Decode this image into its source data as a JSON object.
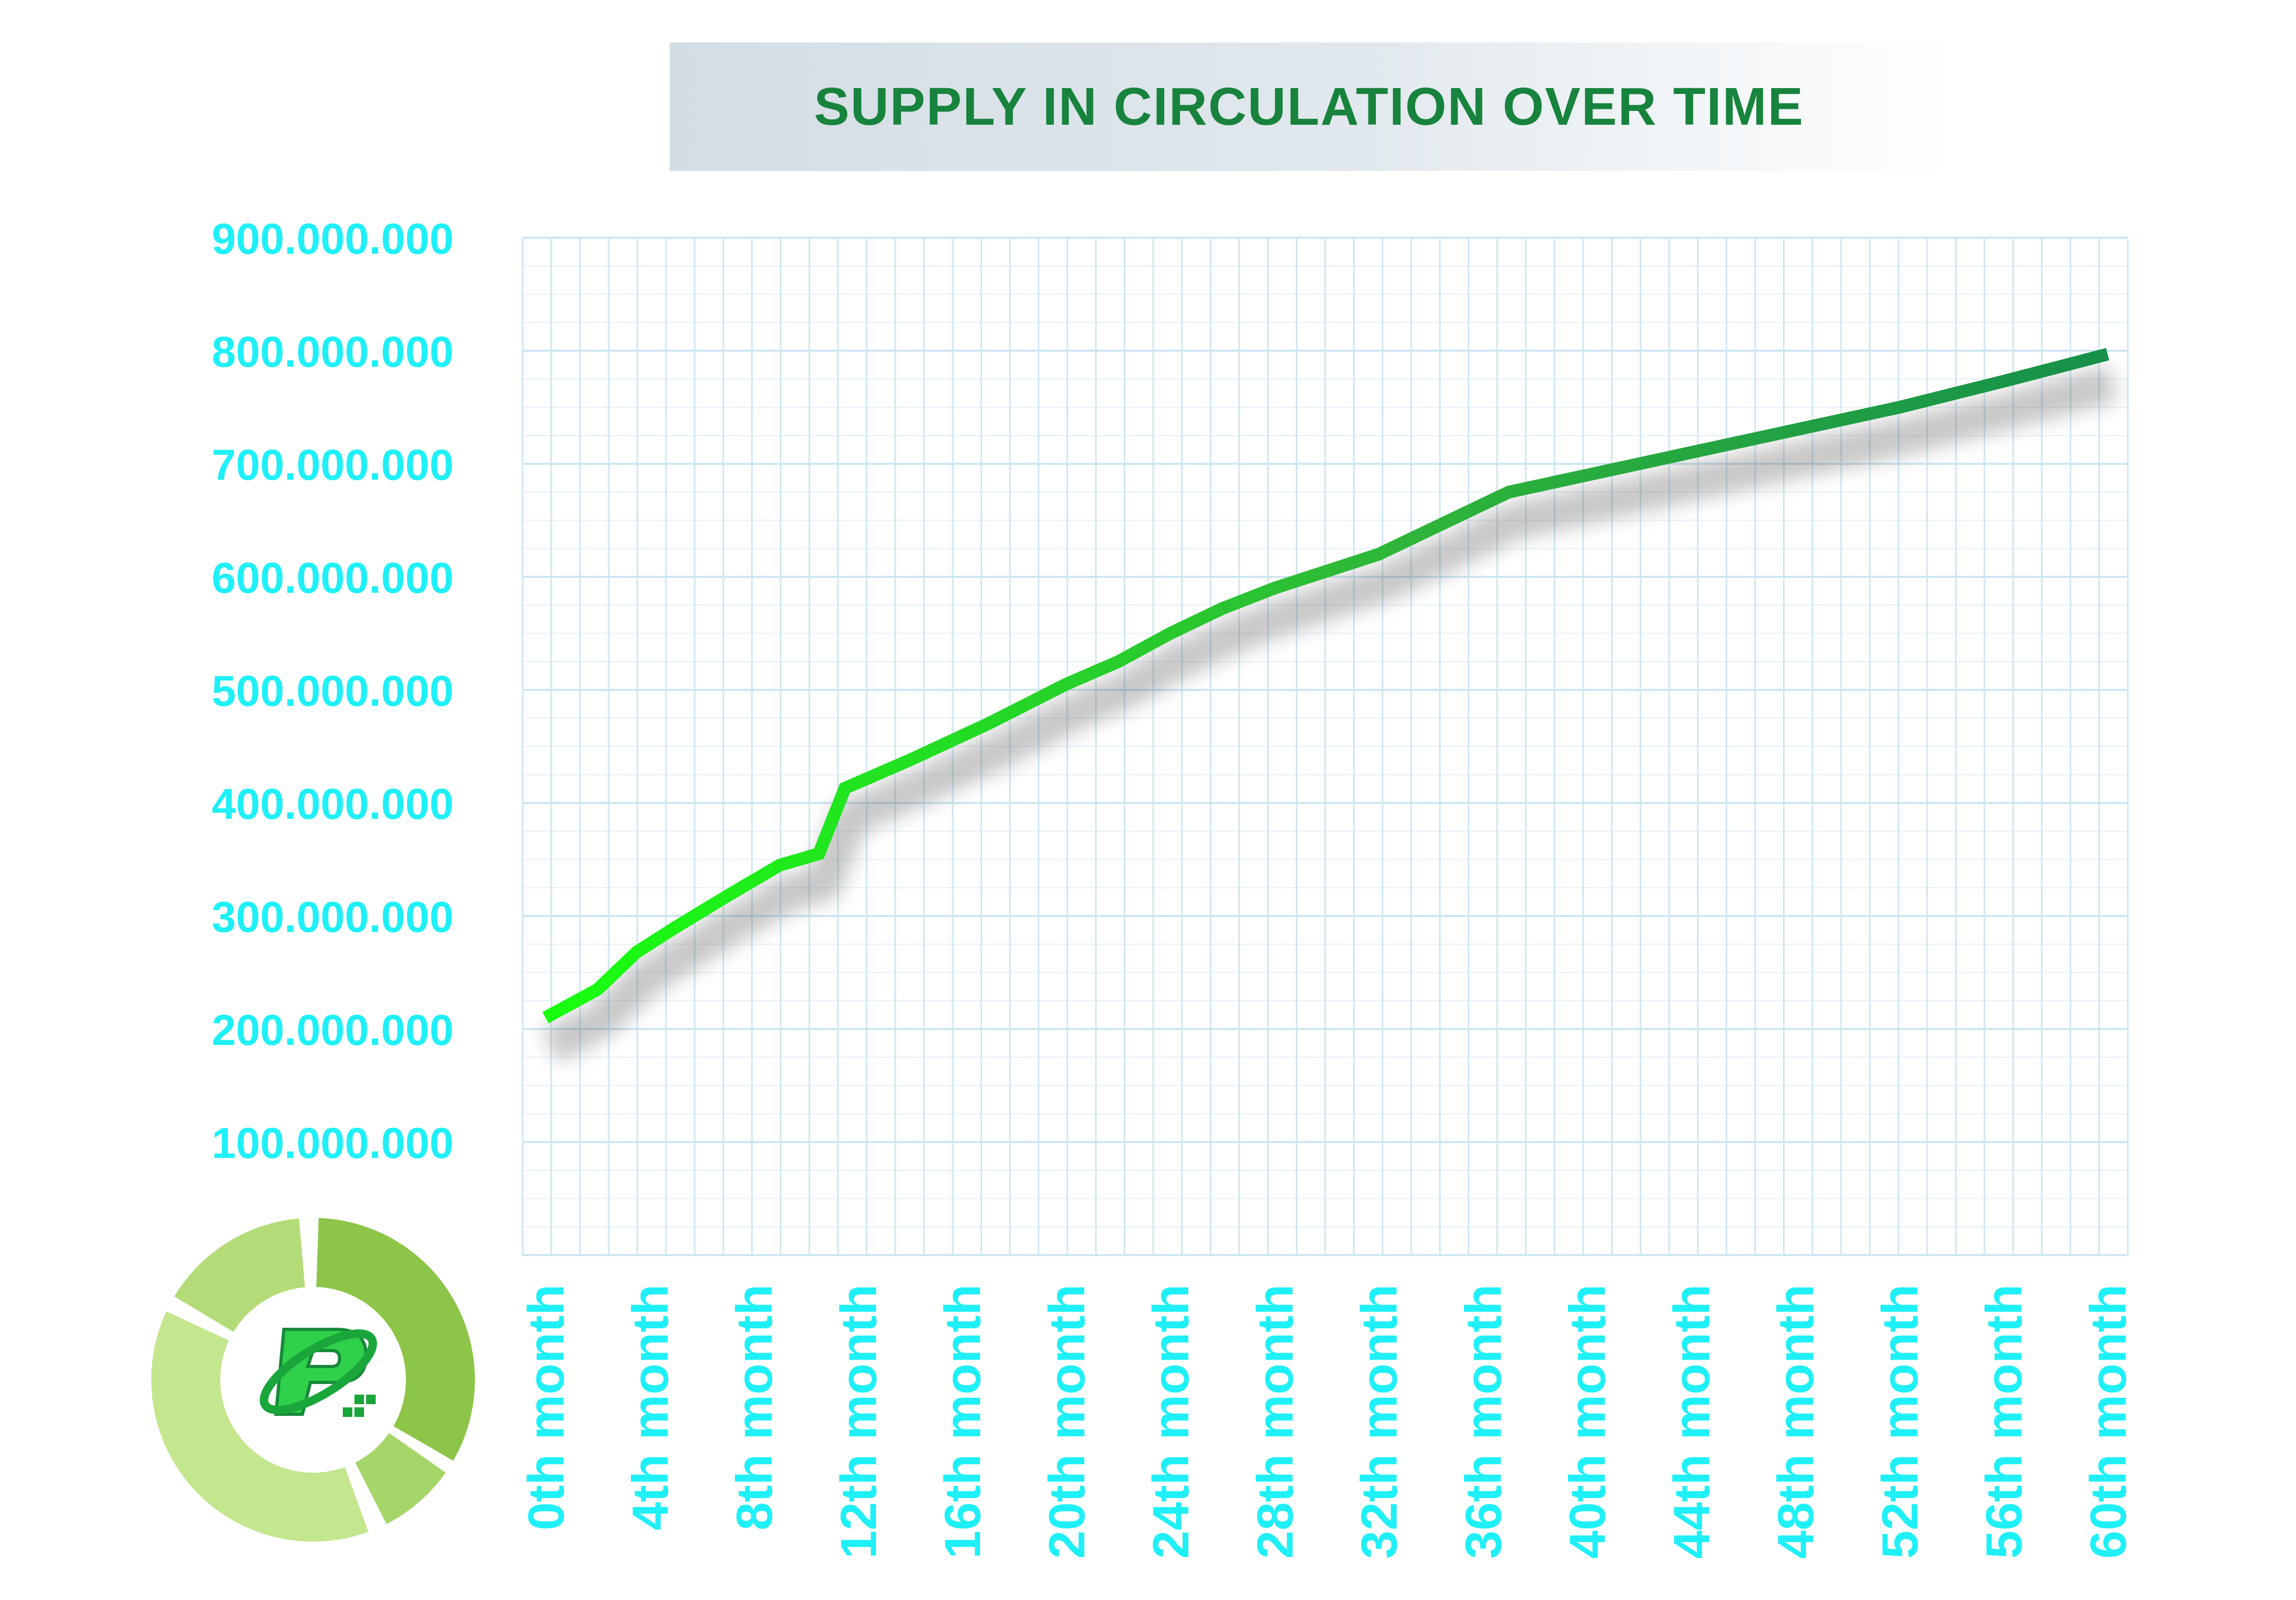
{
  "chart_data": {
    "type": "line",
    "title": "SUPPLY IN CIRCULATION OVER TIME",
    "xlabel": "",
    "ylabel": "",
    "ylim": [
      0,
      900000000
    ],
    "grid": true,
    "legend": "none",
    "y_ticks": [
      {
        "value": 100000000,
        "label": "100.000.000"
      },
      {
        "value": 200000000,
        "label": "200.000.000"
      },
      {
        "value": 300000000,
        "label": "300.000.000"
      },
      {
        "value": 400000000,
        "label": "400.000.000"
      },
      {
        "value": 500000000,
        "label": "500.000.000"
      },
      {
        "value": 600000000,
        "label": "600.000.000"
      },
      {
        "value": 700000000,
        "label": "700.000.000"
      },
      {
        "value": 800000000,
        "label": "800.000.000"
      },
      {
        "value": 900000000,
        "label": "900.000.000"
      }
    ],
    "x_ticks": [
      {
        "value": 0,
        "label": "0th month"
      },
      {
        "value": 4,
        "label": "4th month"
      },
      {
        "value": 8,
        "label": "8th month"
      },
      {
        "value": 12,
        "label": "12th month"
      },
      {
        "value": 16,
        "label": "16th month"
      },
      {
        "value": 20,
        "label": "20th month"
      },
      {
        "value": 24,
        "label": "24th month"
      },
      {
        "value": 28,
        "label": "28th month"
      },
      {
        "value": 32,
        "label": "32th month"
      },
      {
        "value": 36,
        "label": "36th month"
      },
      {
        "value": 40,
        "label": "40th month"
      },
      {
        "value": 44,
        "label": "44th month"
      },
      {
        "value": 48,
        "label": "48th month"
      },
      {
        "value": 52,
        "label": "52th month"
      },
      {
        "value": 56,
        "label": "56th month"
      },
      {
        "value": 60,
        "label": "60th month"
      }
    ],
    "series": [
      {
        "name": "Supply in circulation",
        "x": [
          0,
          2,
          3.5,
          5,
          7,
          9,
          10.5,
          11.5,
          14,
          17,
          20,
          22,
          24,
          26,
          28,
          32,
          37,
          40,
          44,
          48,
          52,
          56,
          58,
          60
        ],
        "y": [
          210000000,
          235000000,
          268000000,
          290000000,
          318000000,
          345000000,
          355000000,
          413000000,
          438000000,
          470000000,
          505000000,
          525000000,
          550000000,
          572000000,
          590000000,
          620000000,
          675000000,
          690000000,
          710000000,
          730000000,
          750000000,
          773000000,
          785000000,
          797000000
        ]
      }
    ],
    "colors": {
      "line_start": "#19ff10",
      "line_end": "#16904a",
      "tick_labels": "#1ff0f7",
      "title": "#17833d",
      "grid": "#cfe6f3"
    }
  },
  "logo": {
    "name": "donut-logo",
    "colors": [
      "#8cc548",
      "#a6d66a",
      "#c4e68f",
      "#b3dc78"
    ]
  }
}
